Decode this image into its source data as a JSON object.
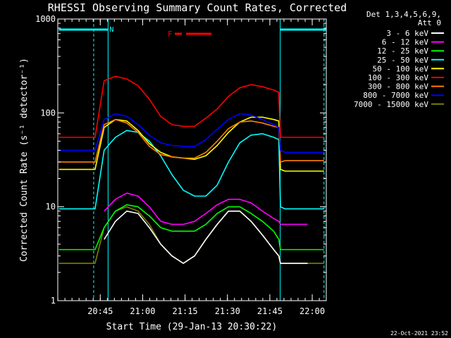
{
  "chart_data": {
    "type": "line",
    "title": "RHESSI Observing Summary Count Rates, Corrected",
    "xlabel": "Start Time (29-Jan-13 20:30:22)",
    "ylabel": "Corrected Count Rate (s⁻¹ detector⁻¹)",
    "yscale": "log",
    "ylim": [
      1,
      1000
    ],
    "xlim_minutes_after_start": [
      -0.4,
      94.6
    ],
    "y_ticks": [
      {
        "value": 1,
        "label": "1"
      },
      {
        "value": 10,
        "label": "10"
      },
      {
        "value": 100,
        "label": "100"
      },
      {
        "value": 1000,
        "label": "1000"
      }
    ],
    "x_ticks": [
      {
        "value": 14.63,
        "label": "20:45"
      },
      {
        "value": 29.63,
        "label": "21:00"
      },
      {
        "value": 44.63,
        "label": "21:15"
      },
      {
        "value": 59.63,
        "label": "21:30"
      },
      {
        "value": 74.63,
        "label": "21:45"
      },
      {
        "value": 89.63,
        "label": "22:00"
      }
    ],
    "legend_header": [
      "Det 1,3,4,5,6,9,",
      "Att 0"
    ],
    "legend_position": "right",
    "night_bars": [
      {
        "label": "N",
        "start": 0,
        "end": 17.4
      },
      {
        "label": "",
        "start": 78.3,
        "end": 94.6
      }
    ],
    "flare_marker": {
      "label": "F",
      "segments": [
        [
          41,
          43.5
        ],
        [
          45,
          54
        ]
      ]
    },
    "saa_lines": [
      12.3,
      17.4,
      78.3,
      93.8
    ],
    "time_points": [
      0,
      12.3,
      12.8,
      16,
      20,
      24,
      28,
      32,
      36,
      40,
      44,
      48,
      52,
      56,
      60,
      64,
      68,
      72,
      76,
      77.8,
      78.4,
      80,
      84,
      88,
      93.8
    ],
    "series": [
      {
        "name": "3 - 6 keV",
        "color": "#ffffff",
        "values": [
          null,
          null,
          null,
          4.5,
          7,
          9,
          8.5,
          6,
          4,
          3,
          2.5,
          3,
          4.5,
          6.5,
          9,
          9,
          7,
          5,
          3.5,
          3,
          2.5,
          2.5,
          2.5,
          2.5,
          null
        ]
      },
      {
        "name": "6 - 12 keV",
        "color": "#ff00ff",
        "values": [
          null,
          null,
          null,
          9,
          12,
          14,
          13,
          10,
          7,
          6.5,
          6.5,
          7,
          8.5,
          10.5,
          12,
          12,
          11,
          9,
          7.5,
          7,
          6.5,
          6.5,
          6.5,
          6.5,
          null
        ]
      },
      {
        "name": "12 - 25 keV",
        "color": "#00ff00",
        "values": [
          3.5,
          3.5,
          3.5,
          6,
          9,
          10.5,
          10,
          8,
          6,
          5.5,
          5.5,
          5.5,
          6.5,
          8.5,
          10,
          10,
          8.5,
          7,
          5.5,
          4.5,
          3.5,
          3.5,
          3.5,
          3.5,
          3.5
        ]
      },
      {
        "name": "25 - 50 keV",
        "color": "#00ffff",
        "values": [
          9.5,
          9.5,
          9.5,
          40,
          55,
          65,
          62,
          50,
          35,
          22,
          15,
          13,
          13,
          17,
          30,
          48,
          58,
          60,
          55,
          52,
          10,
          9.5,
          9.5,
          9.5,
          9.5
        ]
      },
      {
        "name": "50 - 100 keV",
        "color": "#ffff00",
        "values": [
          25,
          25,
          25,
          70,
          85,
          82,
          65,
          47,
          38,
          34,
          33,
          32,
          35,
          45,
          62,
          80,
          90,
          90,
          85,
          82,
          25,
          24,
          24,
          24,
          24
        ]
      },
      {
        "name": "100 - 300 keV",
        "color": "#ff0000",
        "values": [
          55,
          55,
          55,
          220,
          245,
          230,
          195,
          140,
          92,
          75,
          72,
          72,
          88,
          110,
          150,
          185,
          200,
          190,
          175,
          165,
          55,
          55,
          55,
          55,
          55
        ]
      },
      {
        "name": "300 - 800 keV",
        "color": "#ff7f00",
        "values": [
          30,
          30,
          30,
          75,
          85,
          78,
          62,
          44,
          36,
          34,
          33,
          33,
          38,
          50,
          68,
          80,
          82,
          78,
          72,
          70,
          30,
          31,
          31,
          31,
          31
        ]
      },
      {
        "name": "800 - 7000 keV",
        "color": "#0000ff",
        "values": [
          40,
          40,
          40,
          85,
          98,
          92,
          75,
          58,
          48,
          45,
          44,
          44,
          52,
          67,
          85,
          98,
          95,
          85,
          75,
          70,
          40,
          38,
          38,
          38,
          38
        ]
      },
      {
        "name": "7000 - 15000 keV",
        "color": "#7f7f00",
        "values": [
          2.5,
          2.5,
          2.5,
          6,
          9,
          10,
          9,
          6.5,
          4,
          3,
          2.5,
          3,
          4.5,
          6.5,
          9,
          9,
          7,
          5,
          3.5,
          3,
          2.5,
          2.5,
          2.5,
          2.5,
          2.5
        ]
      }
    ],
    "axis_color": "#ffffff"
  },
  "footer": {
    "timestamp": "22-Oct-2021 23:52"
  }
}
